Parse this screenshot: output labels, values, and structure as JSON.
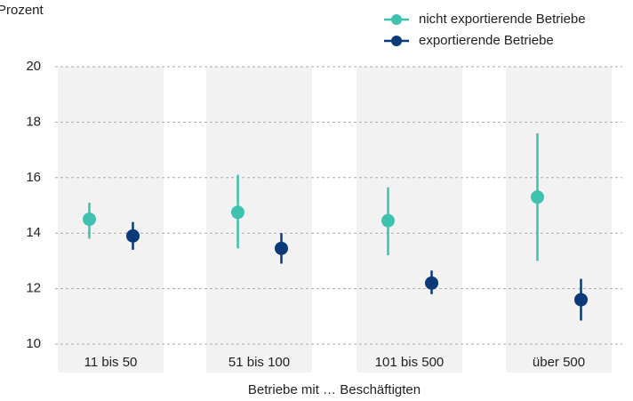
{
  "chart_data": {
    "type": "pointrange",
    "ylabel": "Prozent",
    "xlabel": "Betriebe mit … Beschäftigten",
    "categories": [
      "11 bis 50",
      "51 bis 100",
      "101 bis 500",
      "über 500"
    ],
    "series": [
      {
        "name": "nicht exportierende Betriebe",
        "color": "#3fc1b0",
        "values": [
          14.5,
          14.75,
          14.45,
          15.3
        ],
        "lower": [
          13.8,
          13.45,
          13.2,
          13.0
        ],
        "upper": [
          15.1,
          16.1,
          15.65,
          17.6
        ]
      },
      {
        "name": "exportierende Betriebe",
        "color": "#0b3a78",
        "values": [
          13.9,
          13.45,
          12.2,
          11.6
        ],
        "lower": [
          13.4,
          12.9,
          11.8,
          10.85
        ],
        "upper": [
          14.4,
          14.0,
          12.65,
          12.35
        ]
      }
    ],
    "ylim": [
      10,
      20
    ],
    "yticks": [
      10,
      12,
      14,
      16,
      18,
      20
    ],
    "grid": true,
    "legend": "top-right"
  }
}
